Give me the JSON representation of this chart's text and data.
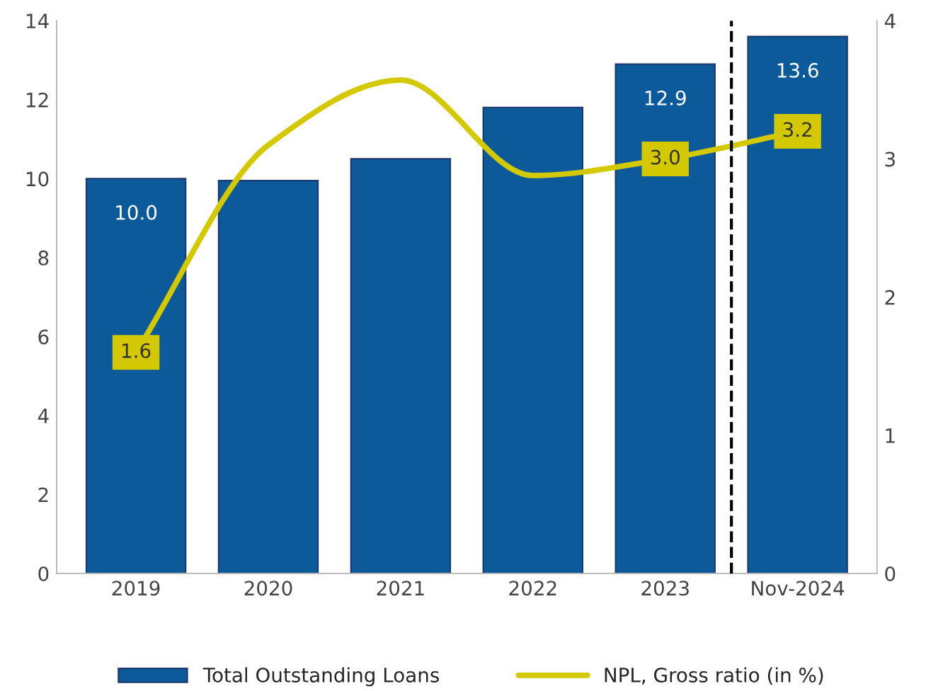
{
  "chart_data": {
    "type": "bar",
    "categories": [
      "2019",
      "2020",
      "2021",
      "2022",
      "2023",
      "Nov-2024"
    ],
    "series": [
      {
        "name": "Total Outstanding Loans",
        "color": "#0d5a9b",
        "values": [
          10.0,
          9.95,
          10.5,
          11.8,
          12.9,
          13.6
        ],
        "value_labels": [
          "10.0",
          null,
          null,
          null,
          "12.9",
          "13.6"
        ]
      },
      {
        "name": "NPL, Gross ratio (in %)",
        "type": "line",
        "axis": "y2",
        "color": "#d4c800",
        "values": [
          1.6,
          3.1,
          3.57,
          2.88,
          3.0,
          3.2
        ],
        "value_labels": [
          "1.6",
          null,
          null,
          null,
          "3.0",
          "3.2"
        ]
      }
    ],
    "ylim": [
      0,
      14
    ],
    "yticks": [
      0,
      2,
      4,
      6,
      8,
      10,
      12,
      14
    ],
    "y2lim": [
      0,
      4
    ],
    "y2ticks": [
      0,
      1,
      2,
      3,
      4
    ],
    "legend": "bottom",
    "grid": false
  }
}
